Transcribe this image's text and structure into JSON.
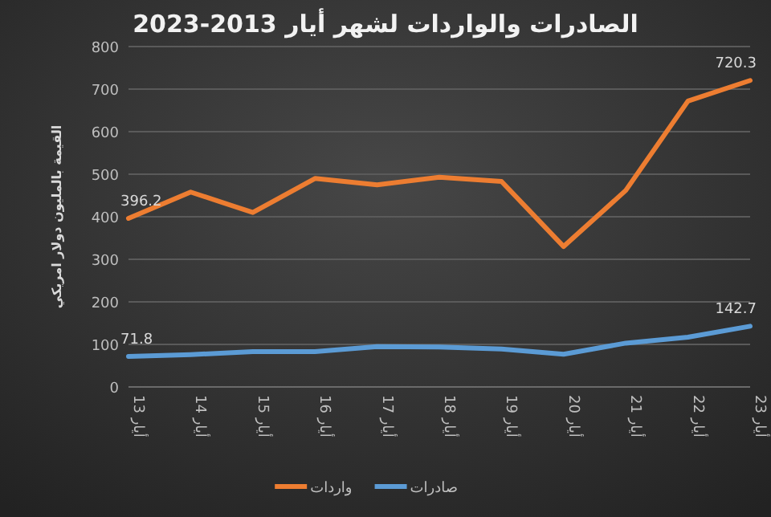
{
  "chart_data": {
    "type": "line",
    "title": "الصادرات والواردات لشهر أيار 2013-2023",
    "ylabel": "القيمة بالمليون دولار امريكي",
    "categories": [
      "أيار 13",
      "أيار 14",
      "أيار 15",
      "أيار 16",
      "أيار 17",
      "أيار 18",
      "أيار 19",
      "أيار 20",
      "أيار 21",
      "أيار 22",
      "أيار 23"
    ],
    "series": [
      {
        "name": "صادرات",
        "color": "#5b9bd5",
        "values": [
          71.8,
          76,
          83,
          83,
          95,
          94,
          89,
          77,
          103,
          117,
          142.7
        ],
        "value_labels": [
          "71.8",
          null,
          null,
          null,
          null,
          null,
          null,
          null,
          null,
          null,
          "142.7"
        ]
      },
      {
        "name": "واردات",
        "color": "#ed7d31",
        "values": [
          396.2,
          458,
          410,
          490,
          475,
          493,
          483,
          330,
          462,
          672,
          720.3
        ],
        "value_labels": [
          "396.2",
          null,
          null,
          null,
          null,
          null,
          null,
          null,
          null,
          null,
          "720.3"
        ]
      }
    ],
    "ylim": [
      0,
      800
    ],
    "yticks": [
      0,
      100,
      200,
      300,
      400,
      500,
      600,
      700,
      800
    ],
    "grid": "y",
    "legend": "bottom",
    "marker": "none",
    "line_style": "solid"
  }
}
